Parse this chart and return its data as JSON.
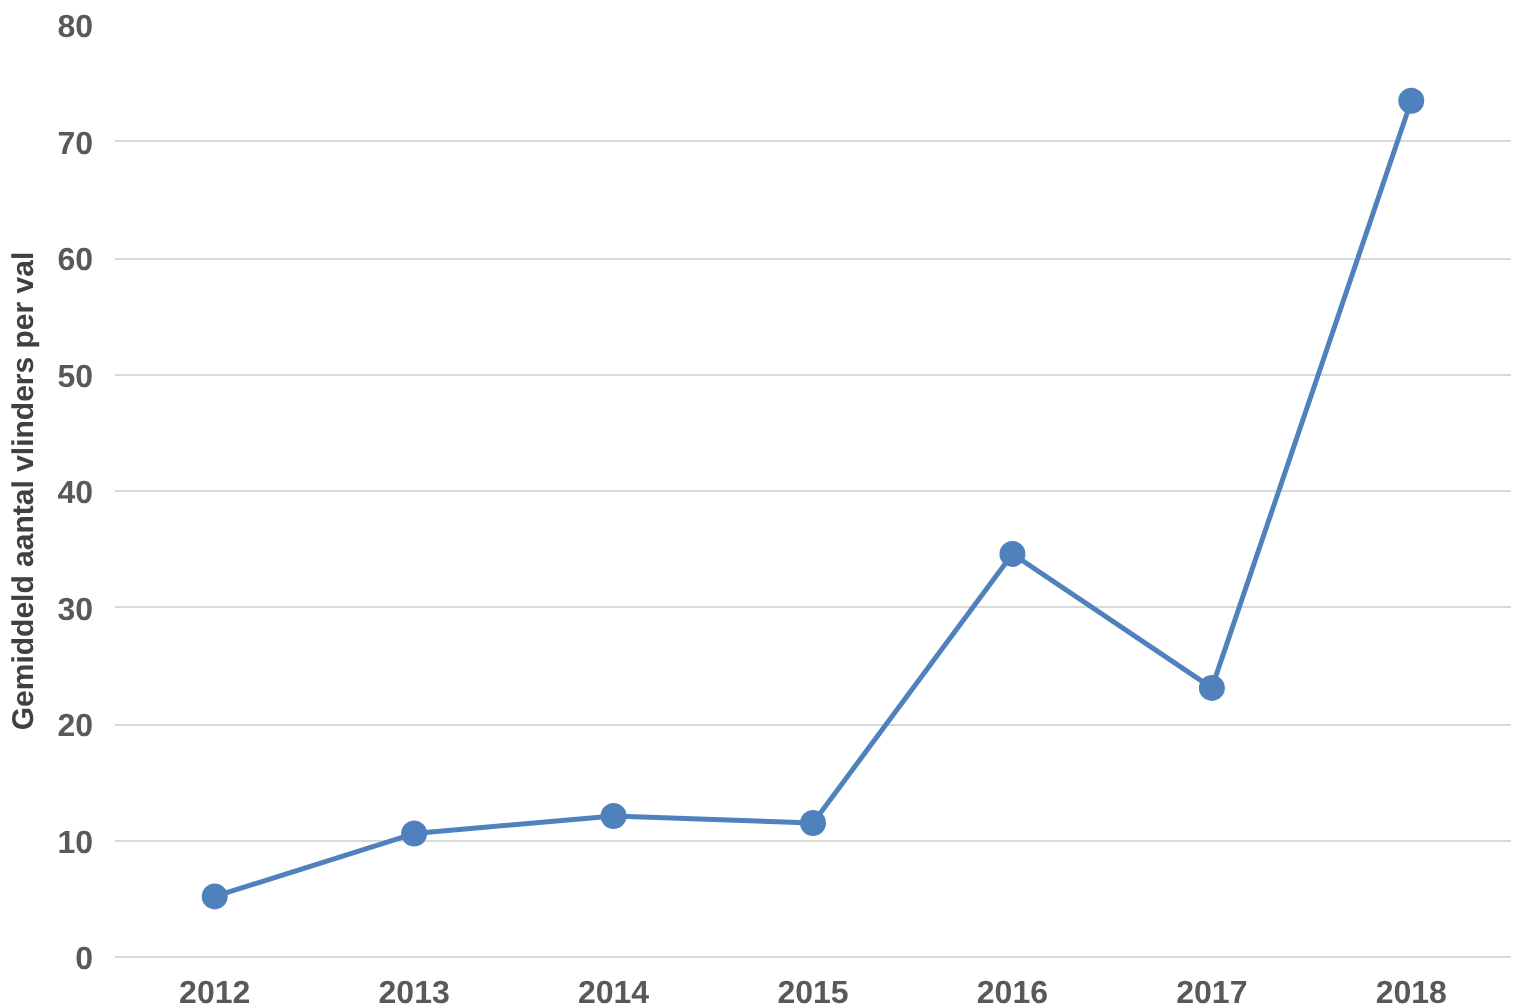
{
  "chart_data": {
    "type": "line",
    "ylabel": "Gemiddeld aantal vlinders per val",
    "categories": [
      "2012",
      "2013",
      "2014",
      "2015",
      "2016",
      "2017",
      "2018"
    ],
    "series": [
      {
        "color": "#4f81bd",
        "values": [
          5.2,
          10.6,
          12.1,
          11.5,
          34.6,
          23.1,
          73.5
        ]
      }
    ],
    "ylim": [
      0,
      80
    ],
    "yticks": [
      0,
      10,
      20,
      30,
      40,
      50,
      60,
      70,
      80
    ],
    "grid": "y",
    "marker": "circle",
    "line_style": "solid"
  }
}
